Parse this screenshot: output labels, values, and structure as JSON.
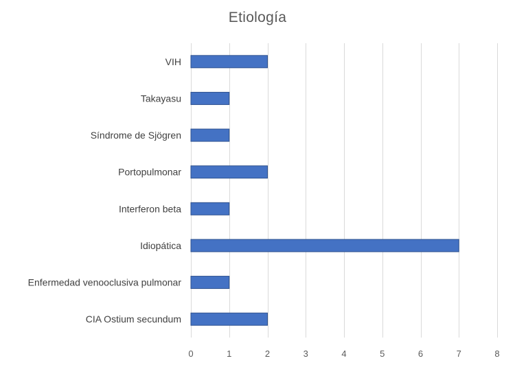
{
  "chart_data": {
    "type": "bar",
    "orientation": "horizontal",
    "title": "Etiología",
    "categories": [
      "VIH",
      "Takayasu",
      "Síndrome de Sjögren",
      "Portopulmonar",
      "Interferon beta",
      "Idiopática",
      "Enfermedad venooclusiva pulmonar",
      "CIA Ostium secundum"
    ],
    "values": [
      2,
      1,
      1,
      2,
      1,
      7,
      1,
      2
    ],
    "xlabel": "",
    "ylabel": "",
    "xlim": [
      0,
      8
    ],
    "x_ticks": [
      "0",
      "1",
      "2",
      "3",
      "4",
      "5",
      "6",
      "7",
      "8"
    ],
    "grid": true,
    "legend": "none",
    "bar_color": "#4472c4"
  }
}
